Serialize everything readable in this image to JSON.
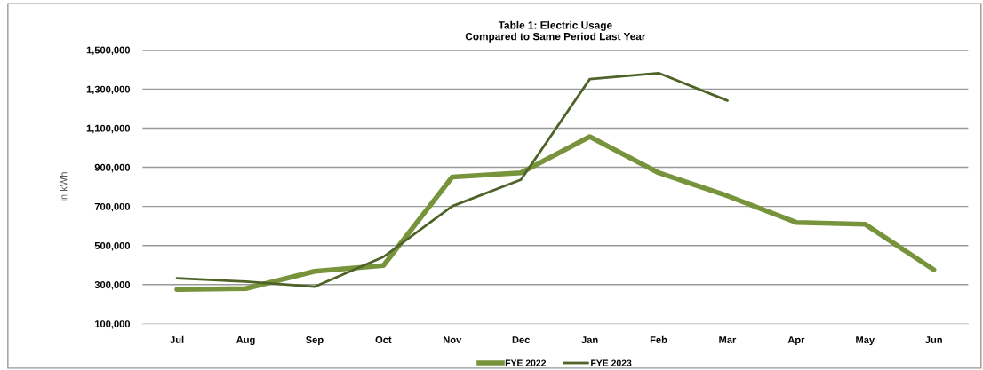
{
  "chart_data": {
    "type": "line",
    "title": "Table 1: Electric Usage\nCompared to Same Period Last Year",
    "ylabel": "in kWh",
    "categories": [
      "Jul",
      "Aug",
      "Sep",
      "Oct",
      "Nov",
      "Dec",
      "Jan",
      "Feb",
      "Mar",
      "Apr",
      "May",
      "Jun"
    ],
    "series": [
      {
        "name": "FYE 2022",
        "color": "#77933c",
        "values": [
          275000,
          280000,
          368000,
          398000,
          850000,
          872000,
          1057000,
          872000,
          754000,
          618000,
          609000,
          376000
        ]
      },
      {
        "name": "FYE 2023",
        "color": "#4f6228",
        "values": [
          333000,
          315000,
          289000,
          442000,
          701000,
          837000,
          1351000,
          1382000,
          1241000,
          null,
          null,
          null
        ]
      }
    ],
    "ylim": [
      100000,
      1500000
    ],
    "yticks": [
      {
        "value": 100000,
        "label": "100,000"
      },
      {
        "value": 300000,
        "label": "300,000"
      },
      {
        "value": 500000,
        "label": "500,000"
      },
      {
        "value": 700000,
        "label": "700,000"
      },
      {
        "value": 900000,
        "label": "900,000"
      },
      {
        "value": 1100000,
        "label": "1,100,000"
      },
      {
        "value": 1300000,
        "label": "1,300,000"
      },
      {
        "value": 1500000,
        "label": "1,500,000"
      }
    ],
    "grid": "y",
    "legend": "bottom",
    "marker": "none",
    "line_style": "solid"
  }
}
